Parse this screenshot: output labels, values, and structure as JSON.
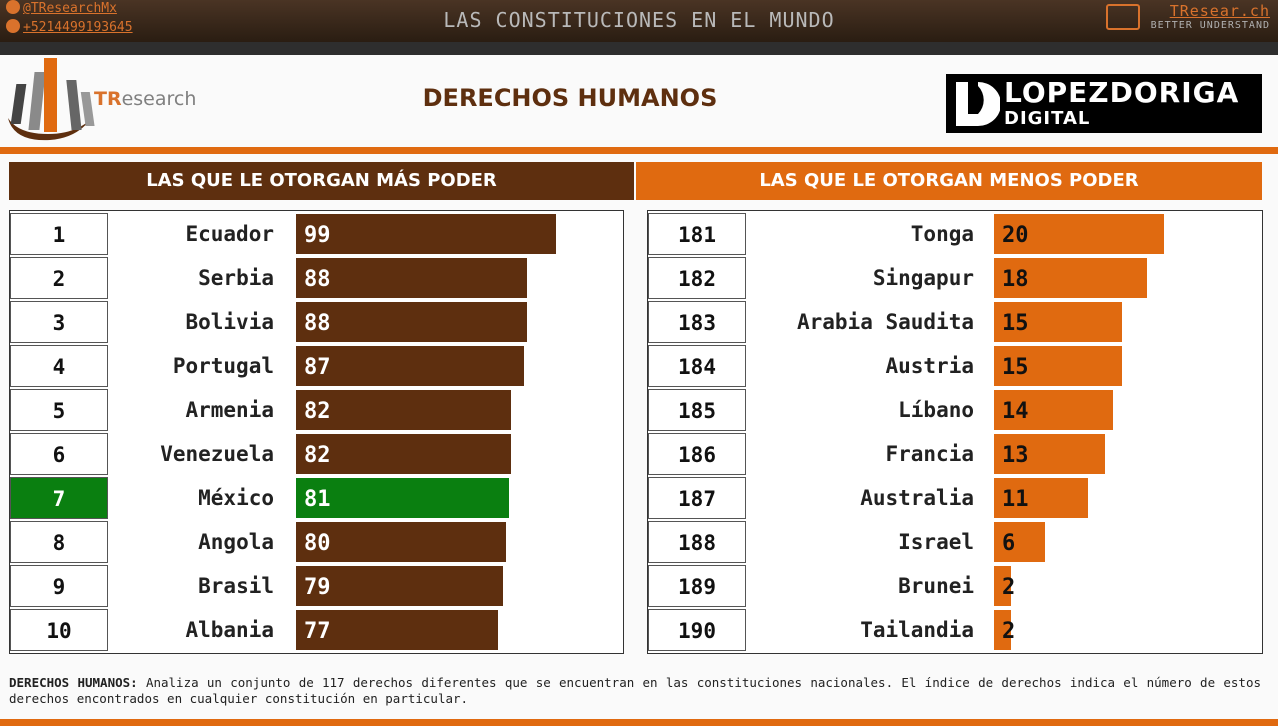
{
  "header": {
    "twitter": "@TResearchMx",
    "phone": "+5214499193645",
    "title": "LAS CONSTITUCIONES EN EL MUNDO",
    "web_link": "TResear.ch",
    "web_tag": "BETTER UNDERSTAND"
  },
  "brand": {
    "prefix": "TR",
    "suffix": "esearch"
  },
  "main_title": "DERECHOS HUMANOS",
  "partner_logo": {
    "line1": "LOPEZDORIGA",
    "line2": "DIGITAL"
  },
  "colors": {
    "dark_brown": "#5e2f0f",
    "orange": "#e06a10",
    "highlight_green": "#0a7f10"
  },
  "chart_data": [
    {
      "type": "bar",
      "orientation": "horizontal",
      "title": "LAS QUE LE OTORGAN MÁS PODER",
      "ranks": [
        "1",
        "2",
        "3",
        "4",
        "5",
        "6",
        "7",
        "8",
        "9",
        "10"
      ],
      "categories": [
        "Ecuador",
        "Serbia",
        "Bolivia",
        "Portugal",
        "Armenia",
        "Venezuela",
        "México",
        "Angola",
        "Brasil",
        "Albania"
      ],
      "values": [
        99,
        88,
        88,
        87,
        82,
        82,
        81,
        80,
        79,
        77
      ],
      "highlight": "México"
    },
    {
      "type": "bar",
      "orientation": "horizontal",
      "title": "LAS QUE LE OTORGAN MENOS PODER",
      "ranks": [
        "181",
        "182",
        "183",
        "184",
        "185",
        "186",
        "187",
        "188",
        "189",
        "190"
      ],
      "categories": [
        "Tonga",
        "Singapur",
        "Arabia Saudita",
        "Austria",
        "Líbano",
        "Francia",
        "Australia",
        "Israel",
        "Brunei",
        "Tailandia"
      ],
      "values": [
        20,
        18,
        15,
        15,
        14,
        13,
        11,
        6,
        2,
        2
      ]
    }
  ],
  "footnote": {
    "label": "DERECHOS HUMANOS:",
    "text": " Analiza un conjunto de 117 derechos diferentes que se encuentran en las constituciones nacionales. El índice de derechos indica el número de estos derechos encontrados en cualquier constitución en particular."
  }
}
